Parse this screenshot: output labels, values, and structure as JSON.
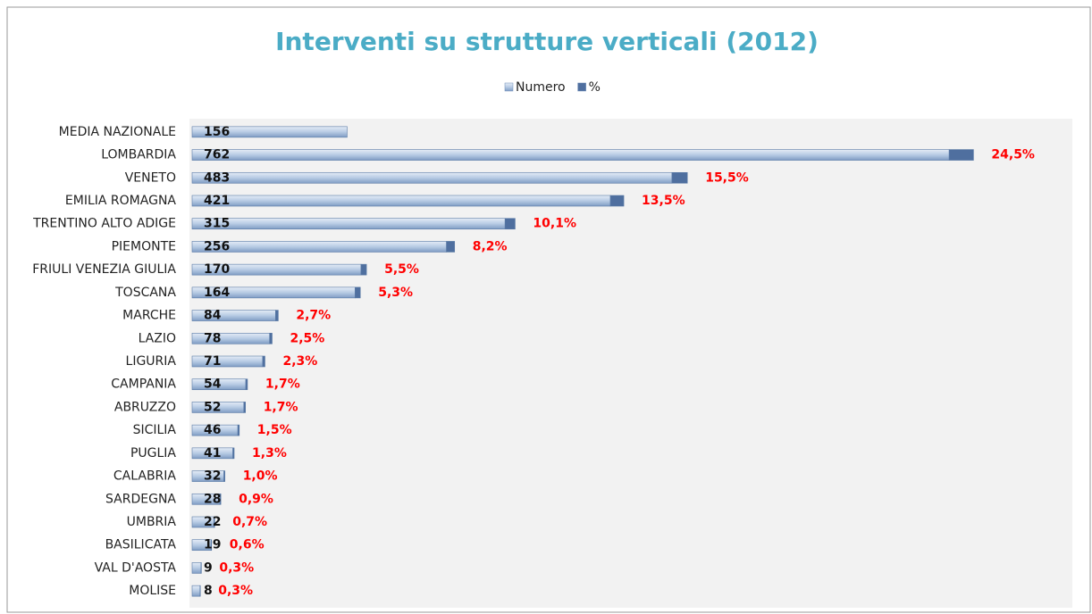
{
  "chart_data": {
    "type": "stacked_bar_horizontal",
    "title": "Interventi su strutture verticali (2012)",
    "categories": [
      "MEDIA NAZIONALE",
      "LOMBARDIA",
      "VENETO",
      "EMILIA ROMAGNA",
      "TRENTINO ALTO ADIGE",
      "PIEMONTE",
      "FRIULI VENEZIA GIULIA",
      "TOSCANA",
      "MARCHE",
      "LAZIO",
      "LIGURIA",
      "CAMPANIA",
      "ABRUZZO",
      "SICILIA",
      "PUGLIA",
      "CALABRIA",
      "SARDEGNA",
      "UMBRIA",
      "BASILICATA",
      "VAL D'AOSTA",
      "MOLISE"
    ],
    "series": [
      {
        "name": "Numero",
        "color": "#9fb9da",
        "values": [
          156,
          762,
          483,
          421,
          315,
          256,
          170,
          164,
          84,
          78,
          71,
          54,
          52,
          46,
          41,
          32,
          28,
          22,
          19,
          9,
          8
        ]
      },
      {
        "name": "%",
        "color": "#4f6f9f",
        "label_color": "#ff0000",
        "values": [
          null,
          24.5,
          15.5,
          13.5,
          10.1,
          8.2,
          5.5,
          5.3,
          2.7,
          2.5,
          2.3,
          1.7,
          1.7,
          1.5,
          1.3,
          1.0,
          0.9,
          0.7,
          0.6,
          0.3,
          0.3
        ],
        "value_labels": [
          null,
          "24,5%",
          "15,5%",
          "13,5%",
          "10,1%",
          "8,2%",
          "5,5%",
          "5,3%",
          "2,7%",
          "2,5%",
          "2,3%",
          "1,7%",
          "1,7%",
          "1,5%",
          "1,3%",
          "1,0%",
          "0,9%",
          "0,7%",
          "0,6%",
          "0,3%",
          "0,3%"
        ]
      }
    ],
    "xlim": [
      0,
      850
    ],
    "legend": "top"
  }
}
